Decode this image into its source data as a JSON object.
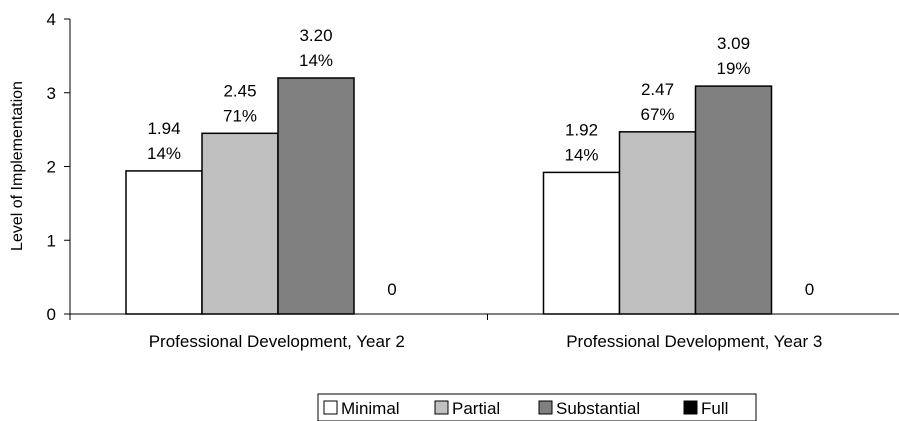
{
  "chart_data": {
    "type": "bar",
    "categories": [
      "Professional Development, Year 2",
      "Professional Development, Year 3"
    ],
    "series": [
      {
        "name": "Minimal",
        "color": "#ffffff",
        "values": [
          1.94,
          1.92
        ],
        "labels": [
          [
            "1.94",
            "14%"
          ],
          [
            "1.92",
            "14%"
          ]
        ]
      },
      {
        "name": "Partial",
        "color": "#c0c0c0",
        "values": [
          2.45,
          2.47
        ],
        "labels": [
          [
            "2.45",
            "71%"
          ],
          [
            "2.47",
            "67%"
          ]
        ]
      },
      {
        "name": "Substantial",
        "color": "#808080",
        "values": [
          3.2,
          3.09
        ],
        "labels": [
          [
            "3.20",
            "14%"
          ],
          [
            "3.09",
            "19%"
          ]
        ]
      },
      {
        "name": "Full",
        "color": "#000000",
        "values": [
          0,
          0
        ],
        "labels": [
          [
            "0"
          ],
          [
            "0"
          ]
        ]
      }
    ],
    "ylabel": "Level of Implementation",
    "xlabel": "",
    "ylim": [
      0,
      4
    ],
    "yticks": [
      "0",
      "1",
      "2",
      "3",
      "4"
    ],
    "grid": false,
    "legend_position": "bottom"
  }
}
